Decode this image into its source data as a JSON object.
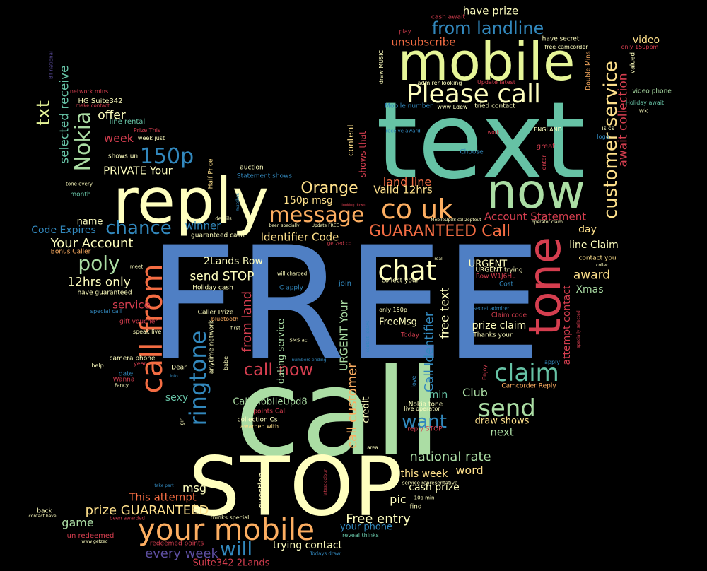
{
  "words": [
    {
      "text": "FREE",
      "color": "#4f7fc4"
    },
    {
      "text": "call",
      "color": "#abdda4"
    },
    {
      "text": "text",
      "color": "#66c2a5"
    },
    {
      "text": "STOP",
      "color": "#ffffbf"
    },
    {
      "text": "reply",
      "color": "#ffffbf"
    },
    {
      "text": "mobile",
      "color": "#e6f598"
    },
    {
      "text": "now",
      "color": "#abdda4"
    },
    {
      "text": "tone",
      "color": "#d53e4f"
    },
    {
      "text": "your mobile",
      "color": "#fdae61"
    },
    {
      "text": "Please call",
      "color": "#ffffbf"
    },
    {
      "text": "call from",
      "color": "#f46d43"
    },
    {
      "text": "co uk",
      "color": "#fdae61"
    },
    {
      "text": "chat",
      "color": "#ffffbf"
    },
    {
      "text": "claim",
      "color": "#66c2a5"
    },
    {
      "text": "customer service",
      "color": "#fee08b"
    },
    {
      "text": "send",
      "color": "#abdda4"
    },
    {
      "text": "message",
      "color": "#fdae61"
    },
    {
      "text": "ringtone",
      "color": "#3288bd"
    },
    {
      "text": "Nokia",
      "color": "#abdda4"
    },
    {
      "text": "150p",
      "color": "#3288bd"
    },
    {
      "text": "from landline",
      "color": "#3288bd"
    },
    {
      "text": "GUARANTEED Call",
      "color": "#f46d43"
    },
    {
      "text": "poly",
      "color": "#abdda4"
    },
    {
      "text": "chance",
      "color": "#3288bd"
    },
    {
      "text": "Orange",
      "color": "#fee08b"
    },
    {
      "text": "txt",
      "color": "#e6f598"
    },
    {
      "text": "will",
      "color": "#3288bd"
    },
    {
      "text": "want",
      "color": "#3288bd"
    },
    {
      "text": "await collection",
      "color": "#d53e4f"
    },
    {
      "text": "call now",
      "color": "#d53e4f"
    },
    {
      "text": "selected receive",
      "color": "#66c2a5"
    },
    {
      "text": "from land",
      "color": "#d53e4f"
    },
    {
      "text": "call customer",
      "color": "#fdae61"
    },
    {
      "text": "Free entry",
      "color": "#ffffbf"
    },
    {
      "text": "Call Identifier",
      "color": "#3288bd"
    },
    {
      "text": "free text",
      "color": "#ffffbf"
    },
    {
      "text": "every week",
      "color": "#5e4fa2"
    },
    {
      "text": "prize GUARANTEED",
      "color": "#fee08b"
    },
    {
      "text": "national rate",
      "color": "#abdda4"
    },
    {
      "text": "Your Account",
      "color": "#ffffbf"
    },
    {
      "text": "12hrs only",
      "color": "#ffffbf"
    },
    {
      "text": "send STOP",
      "color": "#ffffbf"
    },
    {
      "text": "award",
      "color": "#fee08b"
    },
    {
      "text": "offer",
      "color": "#ffffbf"
    },
    {
      "text": "have prize",
      "color": "#ffffbf"
    },
    {
      "text": "unsubscribe",
      "color": "#f46d43"
    },
    {
      "text": "land line",
      "color": "#f46d43"
    },
    {
      "text": "Valid 12hrs",
      "color": "#fee08b"
    },
    {
      "text": "150p msg",
      "color": "#fee08b"
    },
    {
      "text": "Identifier Code",
      "color": "#fee08b"
    },
    {
      "text": "Account Statement",
      "color": "#d53e4f"
    },
    {
      "text": "line Claim",
      "color": "#ffffbf"
    },
    {
      "text": "URGENT Your",
      "color": "#abdda4"
    },
    {
      "text": "dating service",
      "color": "#abdda4"
    },
    {
      "text": "This attempt",
      "color": "#f46d43"
    },
    {
      "text": "game",
      "color": "#abdda4"
    },
    {
      "text": "trying contact",
      "color": "#ffffbf"
    },
    {
      "text": "week",
      "color": "#d53e4f"
    },
    {
      "text": "PRIVATE Your",
      "color": "#ffffbf"
    },
    {
      "text": "Code Expires",
      "color": "#3288bd"
    },
    {
      "text": "name",
      "color": "#ffffbf"
    },
    {
      "text": "winner",
      "color": "#3288bd"
    },
    {
      "text": "service",
      "color": "#d53e4f"
    },
    {
      "text": "2Lands Row",
      "color": "#ffffbf"
    },
    {
      "text": "Club",
      "color": "#abdda4"
    },
    {
      "text": "next",
      "color": "#abdda4"
    },
    {
      "text": "draw shows",
      "color": "#fee08b"
    },
    {
      "text": "word",
      "color": "#fee08b"
    },
    {
      "text": "this week",
      "color": "#fee08b"
    },
    {
      "text": "cash prize",
      "color": "#ffffbf"
    },
    {
      "text": "pic",
      "color": "#ffffbf"
    },
    {
      "text": "msg",
      "color": "#ffffbf"
    },
    {
      "text": "prize claim",
      "color": "#ffffbf"
    },
    {
      "text": "FreeMsg",
      "color": "#ffffbf"
    },
    {
      "text": "attempt contact",
      "color": "#d53e4f"
    },
    {
      "text": "Xmas",
      "color": "#abdda4"
    },
    {
      "text": "day",
      "color": "#fee08b"
    },
    {
      "text": "sexy",
      "color": "#66c2a5"
    },
    {
      "text": "Call MobileUpd8",
      "color": "#abdda4"
    },
    {
      "text": "your phone",
      "color": "#3288bd"
    },
    {
      "text": "Suite342 2Lands",
      "color": "#d53e4f"
    },
    {
      "text": "min",
      "color": "#66c2a5"
    },
    {
      "text": "credit",
      "color": "#ffffbf"
    },
    {
      "text": "video",
      "color": "#fee08b"
    },
    {
      "text": "content",
      "color": "#fee08b"
    },
    {
      "text": "shows that",
      "color": "#d53e4f"
    },
    {
      "text": "URGENT",
      "color": "#ffffbf"
    },
    {
      "text": "question",
      "color": "#ffffbf"
    },
    {
      "text": "anytime network",
      "color": "#ffffbf"
    },
    {
      "text": "HG Suite342",
      "color": "#ffffbf"
    },
    {
      "text": "line rental",
      "color": "#66c2a5"
    },
    {
      "text": "network mins",
      "color": "#d53e4f"
    },
    {
      "text": "BT national",
      "color": "#5e4fa2"
    },
    {
      "text": "Mobile number",
      "color": "#3288bd"
    },
    {
      "text": "tried contact",
      "color": "#ffffbf"
    },
    {
      "text": "www Ldew",
      "color": "#ffffbf"
    },
    {
      "text": "Update latest",
      "color": "#d53e4f"
    },
    {
      "text": "admirer looking",
      "color": "#ffffbf"
    },
    {
      "text": "draw MUSIC",
      "color": "#ffffbf"
    },
    {
      "text": "receive award",
      "color": "#3288bd"
    },
    {
      "text": "cash await",
      "color": "#d53e4f"
    },
    {
      "text": "play",
      "color": "#d53e4f"
    },
    {
      "text": "have secret",
      "color": "#ffffbf"
    },
    {
      "text": "free camcorder",
      "color": "#ffffbf"
    },
    {
      "text": "only 150ppm",
      "color": "#d53e4f"
    },
    {
      "text": "valued",
      "color": "#ffffbf"
    },
    {
      "text": "Double Mins",
      "color": "#fdae61"
    },
    {
      "text": "Holiday await",
      "color": "#66c2a5"
    },
    {
      "text": "video phone",
      "color": "#abdda4"
    },
    {
      "text": "wk",
      "color": "#ffffbf"
    },
    {
      "text": "ENGLAND",
      "color": "#ffffbf"
    },
    {
      "text": "great",
      "color": "#d53e4f"
    },
    {
      "text": "enter",
      "color": "#d53e4f"
    },
    {
      "text": "logo",
      "color": "#3288bd"
    },
    {
      "text": "Choose",
      "color": "#3288bd"
    },
    {
      "text": "work",
      "color": "#d53e4f"
    },
    {
      "text": "Prize This",
      "color": "#d53e4f"
    },
    {
      "text": "week just",
      "color": "#ffffbf"
    },
    {
      "text": "make contact",
      "color": "#d53e4f"
    },
    {
      "text": "shows un",
      "color": "#ffffbf"
    },
    {
      "text": "auction",
      "color": "#ffffbf"
    },
    {
      "text": "Statement shows",
      "color": "#3288bd"
    },
    {
      "text": "Half Price",
      "color": "#fee08b"
    },
    {
      "text": "tone every",
      "color": "#ffffbf"
    },
    {
      "text": "month",
      "color": "#66c2a5"
    },
    {
      "text": "matches",
      "color": "#3288bd"
    },
    {
      "text": "details",
      "color": "#ffffbf"
    },
    {
      "text": "guaranteed cash",
      "color": "#ffffbf"
    },
    {
      "text": "Update FREE",
      "color": "#ffffbf"
    },
    {
      "text": "Bonus Caller",
      "color": "#fdae61"
    },
    {
      "text": "meet",
      "color": "#ffffbf"
    },
    {
      "text": "have guaranteed",
      "color": "#ffffbf"
    },
    {
      "text": "Holiday cash",
      "color": "#ffffbf"
    },
    {
      "text": "will charged",
      "color": "#ffffbf"
    },
    {
      "text": "C apply",
      "color": "#3288bd"
    },
    {
      "text": "join",
      "color": "#3288bd"
    },
    {
      "text": "collect your",
      "color": "#ffffbf"
    },
    {
      "text": "special call",
      "color": "#3288bd"
    },
    {
      "text": "gift voucher",
      "color": "#d53e4f"
    },
    {
      "text": "speak live",
      "color": "#ffffbf"
    },
    {
      "text": "Caller Prize",
      "color": "#ffffbf"
    },
    {
      "text": "bluetooth",
      "color": "#fdae61"
    },
    {
      "text": "first",
      "color": "#ffffbf"
    },
    {
      "text": "SMS ac",
      "color": "#ffffbf"
    },
    {
      "text": "camera phone",
      "color": "#ffffbf"
    },
    {
      "text": "year",
      "color": "#d53e4f"
    },
    {
      "text": "help",
      "color": "#ffffbf"
    },
    {
      "text": "date",
      "color": "#3288bd"
    },
    {
      "text": "Dear",
      "color": "#ffffbf"
    },
    {
      "text": "info",
      "color": "#3288bd"
    },
    {
      "text": "babe",
      "color": "#ffffbf"
    },
    {
      "text": "Wanna",
      "color": "#d53e4f"
    },
    {
      "text": "Fancy",
      "color": "#ffffbf"
    },
    {
      "text": "numbers ending",
      "color": "#3288bd"
    },
    {
      "text": "points Call",
      "color": "#d53e4f"
    },
    {
      "text": "collection Cs",
      "color": "#ffffbf"
    },
    {
      "text": "awarded with",
      "color": "#fee08b"
    },
    {
      "text": "girl",
      "color": "#ffffbf"
    },
    {
      "text": "only 150p",
      "color": "#ffffbf"
    },
    {
      "text": "Today",
      "color": "#d53e4f"
    },
    {
      "text": "Thanks your",
      "color": "#ffffbf"
    },
    {
      "text": "Claim code",
      "color": "#d53e4f"
    },
    {
      "text": "secret admirer",
      "color": "#3288bd"
    },
    {
      "text": "Cost",
      "color": "#3288bd"
    },
    {
      "text": "Row W1J6HL",
      "color": "#d53e4f"
    },
    {
      "text": "URGENT trying",
      "color": "#ffffbf"
    },
    {
      "text": "real",
      "color": "#ffffbf"
    },
    {
      "text": "contact you",
      "color": "#fee08b"
    },
    {
      "text": "collect",
      "color": "#ffffbf"
    },
    {
      "text": "specially selected",
      "color": "#d53e4f"
    },
    {
      "text": "apply",
      "color": "#3288bd"
    },
    {
      "text": "Camcorder Reply",
      "color": "#fdae61"
    },
    {
      "text": "Enjoy",
      "color": "#d53e4f"
    },
    {
      "text": "love",
      "color": "#3288bd"
    },
    {
      "text": "Nokia tone",
      "color": "#ffffbf"
    },
    {
      "text": "live operator",
      "color": "#ffffbf"
    },
    {
      "text": "reply STOP",
      "color": "#d53e4f"
    },
    {
      "text": "area",
      "color": "#ffffbf"
    },
    {
      "text": "service representative",
      "color": "#ffffbf"
    },
    {
      "text": "10p min",
      "color": "#ffffbf"
    },
    {
      "text": "find",
      "color": "#ffffbf"
    },
    {
      "text": "latest colour",
      "color": "#d53e4f"
    },
    {
      "text": "thinks special",
      "color": "#ffffbf"
    },
    {
      "text": "reveal thinks",
      "color": "#66c2a5"
    },
    {
      "text": "Todays draw",
      "color": "#3288bd"
    },
    {
      "text": "redeemed points",
      "color": "#d53e4f"
    },
    {
      "text": "back",
      "color": "#ffffbf"
    },
    {
      "text": "contact have",
      "color": "#ffffbf"
    },
    {
      "text": "been awarded",
      "color": "#d53e4f"
    },
    {
      "text": "un redeemed",
      "color": "#d53e4f"
    },
    {
      "text": "www getzed",
      "color": "#ffffbf"
    },
    {
      "text": "take part",
      "color": "#3288bd"
    },
    {
      "text": "been specially",
      "color": "#ffffbf"
    },
    {
      "text": "looking down",
      "color": "#d53e4f"
    },
    {
      "text": "getzed co",
      "color": "#d53e4f"
    },
    {
      "text": "MobileUpd8 call2optout",
      "color": "#ffffbf"
    },
    {
      "text": "operator claim",
      "color": "#ffffbf"
    },
    {
      "text": "is cs",
      "color": "#ffffbf"
    },
    {
      "text": "contact Todays",
      "color": "#3288bd"
    }
  ]
}
